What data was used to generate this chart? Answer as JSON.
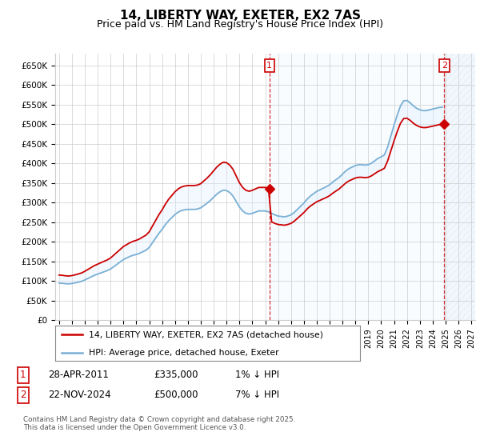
{
  "title": "14, LIBERTY WAY, EXETER, EX2 7AS",
  "subtitle": "Price paid vs. HM Land Registry's House Price Index (HPI)",
  "title_fontsize": 11,
  "subtitle_fontsize": 9,
  "ylabel_ticks": [
    "£0",
    "£50K",
    "£100K",
    "£150K",
    "£200K",
    "£250K",
    "£300K",
    "£350K",
    "£400K",
    "£450K",
    "£500K",
    "£550K",
    "£600K",
    "£650K"
  ],
  "ytick_values": [
    0,
    50000,
    100000,
    150000,
    200000,
    250000,
    300000,
    350000,
    400000,
    450000,
    500000,
    550000,
    600000,
    650000
  ],
  "ylim": [
    0,
    680000
  ],
  "xlim_start": 1994.7,
  "xlim_end": 2027.3,
  "xtick_years": [
    1995,
    1996,
    1997,
    1998,
    1999,
    2000,
    2001,
    2002,
    2003,
    2004,
    2005,
    2006,
    2007,
    2008,
    2009,
    2010,
    2011,
    2012,
    2013,
    2014,
    2015,
    2016,
    2017,
    2018,
    2019,
    2020,
    2021,
    2022,
    2023,
    2024,
    2025,
    2026,
    2027
  ],
  "hpi_color": "#7ab0d4",
  "price_color": "#cc0000",
  "sale1_x": 2011.33,
  "sale1_y": 335000,
  "sale2_x": 2024.9,
  "sale2_y": 500000,
  "legend_text1": "14, LIBERTY WAY, EXETER, EX2 7AS (detached house)",
  "legend_text2": "HPI: Average price, detached house, Exeter",
  "table_row1": [
    "1",
    "28-APR-2011",
    "£335,000",
    "1% ↓ HPI"
  ],
  "table_row2": [
    "2",
    "22-NOV-2024",
    "£500,000",
    "7% ↓ HPI"
  ],
  "footer": "Contains HM Land Registry data © Crown copyright and database right 2025.\nThis data is licensed under the Open Government Licence v3.0.",
  "bg_color": "#ffffff",
  "grid_color": "#cccccc",
  "fill_color": "#ddeeff",
  "hpi_data_x": [
    1995.0,
    1995.25,
    1995.5,
    1995.75,
    1996.0,
    1996.25,
    1996.5,
    1996.75,
    1997.0,
    1997.25,
    1997.5,
    1997.75,
    1998.0,
    1998.25,
    1998.5,
    1998.75,
    1999.0,
    1999.25,
    1999.5,
    1999.75,
    2000.0,
    2000.25,
    2000.5,
    2000.75,
    2001.0,
    2001.25,
    2001.5,
    2001.75,
    2002.0,
    2002.25,
    2002.5,
    2002.75,
    2003.0,
    2003.25,
    2003.5,
    2003.75,
    2004.0,
    2004.25,
    2004.5,
    2004.75,
    2005.0,
    2005.25,
    2005.5,
    2005.75,
    2006.0,
    2006.25,
    2006.5,
    2006.75,
    2007.0,
    2007.25,
    2007.5,
    2007.75,
    2008.0,
    2008.25,
    2008.5,
    2008.75,
    2009.0,
    2009.25,
    2009.5,
    2009.75,
    2010.0,
    2010.25,
    2010.5,
    2010.75,
    2011.0,
    2011.25,
    2011.5,
    2011.75,
    2012.0,
    2012.25,
    2012.5,
    2012.75,
    2013.0,
    2013.25,
    2013.5,
    2013.75,
    2014.0,
    2014.25,
    2014.5,
    2014.75,
    2015.0,
    2015.25,
    2015.5,
    2015.75,
    2016.0,
    2016.25,
    2016.5,
    2016.75,
    2017.0,
    2017.25,
    2017.5,
    2017.75,
    2018.0,
    2018.25,
    2018.5,
    2018.75,
    2019.0,
    2019.25,
    2019.5,
    2019.75,
    2020.0,
    2020.25,
    2020.5,
    2020.75,
    2021.0,
    2021.25,
    2021.5,
    2021.75,
    2022.0,
    2022.25,
    2022.5,
    2022.75,
    2023.0,
    2023.25,
    2023.5,
    2023.75,
    2024.0,
    2024.25,
    2024.5,
    2024.75
  ],
  "hpi_data_y": [
    95000,
    94500,
    93500,
    93000,
    94000,
    95500,
    97500,
    99500,
    103000,
    107000,
    111000,
    115000,
    118000,
    121000,
    124000,
    127000,
    131000,
    137000,
    143000,
    149000,
    155000,
    159000,
    163000,
    166000,
    168000,
    171000,
    175000,
    179000,
    186000,
    198000,
    210000,
    222000,
    232000,
    244000,
    254000,
    262000,
    270000,
    276000,
    280000,
    282000,
    283000,
    283000,
    283000,
    284000,
    287000,
    293000,
    299000,
    306000,
    314000,
    322000,
    328000,
    332000,
    331000,
    326000,
    317000,
    303000,
    289000,
    279000,
    273000,
    271000,
    273000,
    276000,
    279000,
    279000,
    279000,
    277000,
    273000,
    269000,
    266000,
    265000,
    264000,
    266000,
    269000,
    275000,
    283000,
    291000,
    299000,
    309000,
    317000,
    323000,
    329000,
    333000,
    337000,
    341000,
    346000,
    353000,
    359000,
    365000,
    373000,
    381000,
    387000,
    391000,
    395000,
    397000,
    397000,
    396000,
    397000,
    401000,
    407000,
    413000,
    417000,
    422000,
    442000,
    470000,
    498000,
    524000,
    547000,
    560000,
    561000,
    555000,
    547000,
    541000,
    537000,
    535000,
    535000,
    537000,
    539000,
    541000,
    543000,
    544000
  ],
  "hpi_base_x": 2011.33,
  "hpi_base_hpi": 276500,
  "hpi_base_price": 335000,
  "hpi_base2_x": 2024.9,
  "hpi_base2_hpi": 543000,
  "hpi_base2_price": 500000
}
